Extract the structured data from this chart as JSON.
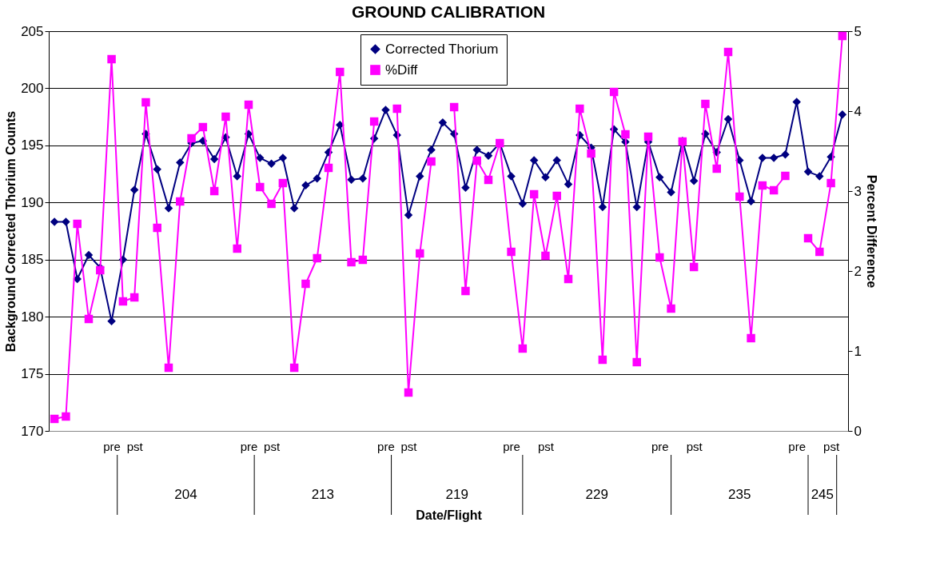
{
  "chart_data": {
    "type": "line",
    "title": "GROUND CALIBRATION",
    "xlabel": "Date/Flight",
    "ylabel": "Background Corrected Thorium Counts",
    "y2label": "Percent Difference",
    "categories": [
      null,
      null,
      null,
      null,
      null,
      "pre",
      null,
      "pst",
      null,
      null,
      null,
      null,
      null,
      null,
      null,
      null,
      null,
      "pre",
      null,
      "pst",
      null,
      null,
      null,
      null,
      null,
      null,
      null,
      null,
      null,
      "pre",
      null,
      "pst",
      null,
      null,
      null,
      null,
      null,
      null,
      null,
      null,
      "pre",
      null,
      null,
      "pst",
      null,
      null,
      null,
      null,
      null,
      null,
      null,
      null,
      null,
      "pre",
      null,
      null,
      "pst",
      null,
      null,
      null,
      null,
      null,
      null,
      null,
      null,
      "pre",
      null,
      null,
      "pst",
      null
    ],
    "ylim": [
      170,
      205
    ],
    "yticks": [
      170,
      175,
      180,
      185,
      190,
      195,
      200,
      205
    ],
    "y2lim": [
      0,
      5
    ],
    "y2ticks": [
      0,
      1,
      2,
      3,
      4,
      5
    ],
    "grid": "y",
    "legend": "top",
    "line_style": "solid",
    "annotations": [
      "204",
      "213",
      "219",
      "229",
      "235",
      "245"
    ],
    "series": [
      {
        "name": "Corrected Thorium",
        "color": "#000080",
        "marker": "diamond",
        "values": [
          188.3,
          188.3,
          183.3,
          185.4,
          184.3,
          179.6,
          185.0,
          191.1,
          196.0,
          192.9,
          189.5,
          193.5,
          195.2,
          195.4,
          193.8,
          195.7,
          192.3,
          196.0,
          193.9,
          193.4,
          193.9,
          189.5,
          191.5,
          192.1,
          194.4,
          196.8,
          192.0,
          192.1,
          195.6,
          198.1,
          195.9,
          188.9,
          192.3,
          194.6,
          197.0,
          196.0,
          191.3,
          194.6,
          194.1,
          195.2,
          192.3,
          189.9,
          193.7,
          192.2,
          193.7,
          191.6,
          195.9,
          194.8,
          189.6,
          196.4,
          195.3,
          189.6,
          195.3,
          192.2,
          190.9,
          195.4,
          191.9,
          196.0,
          194.4,
          197.3,
          193.7,
          190.1,
          193.9,
          193.9,
          194.2,
          198.8,
          192.7,
          192.3,
          194.0,
          197.7
        ]
      },
      {
        "name": "%Diff",
        "color": "#ff00ff",
        "marker": "square",
        "axis": "y2",
        "values": [
          0.15,
          0.18,
          2.59,
          1.4,
          2.01,
          4.65,
          1.62,
          1.67,
          4.11,
          2.54,
          0.79,
          2.87,
          3.66,
          3.8,
          3.0,
          3.93,
          2.28,
          4.08,
          3.05,
          2.84,
          3.1,
          0.79,
          1.84,
          2.16,
          3.29,
          4.49,
          2.11,
          2.14,
          3.87,
          null,
          4.03,
          0.48,
          2.22,
          3.37,
          null,
          4.05,
          1.75,
          3.38,
          3.14,
          3.6,
          2.24,
          1.03,
          2.96,
          2.19,
          2.94,
          1.9,
          4.03,
          3.47,
          0.89,
          4.24,
          3.71,
          0.86,
          3.68,
          2.17,
          1.53,
          3.62,
          2.05,
          4.09,
          3.28,
          4.74,
          2.93,
          1.16,
          3.07,
          3.01,
          3.19,
          null,
          2.41,
          2.24,
          3.1,
          4.94
        ]
      }
    ]
  }
}
